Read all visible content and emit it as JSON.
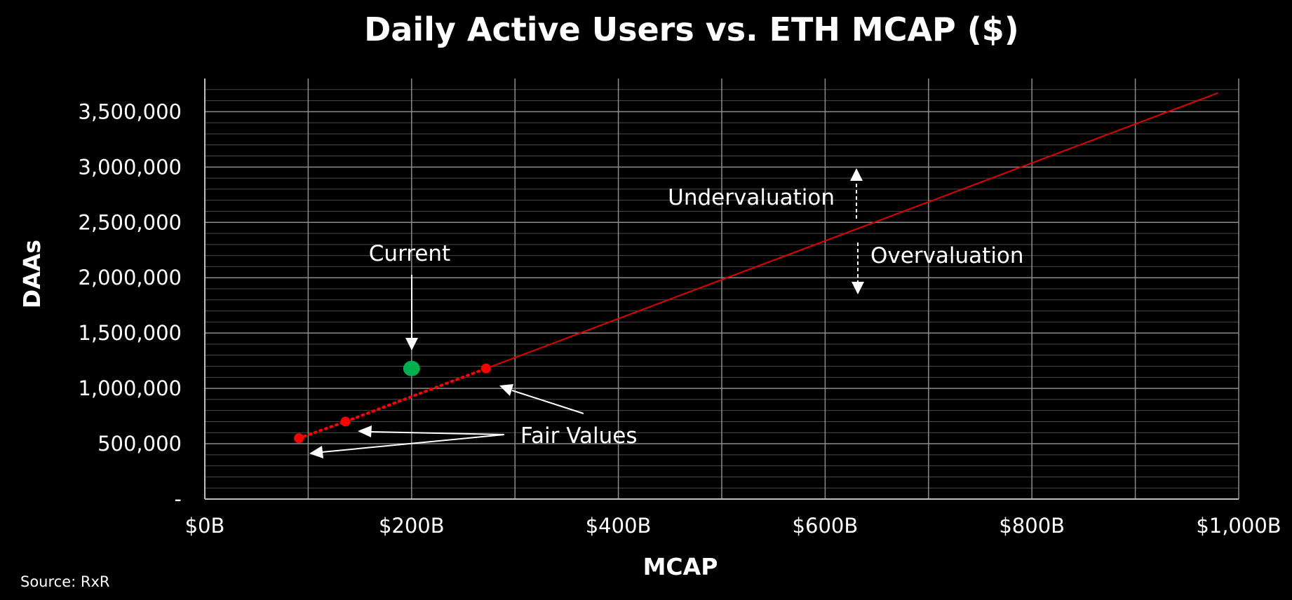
{
  "chart_data": {
    "type": "scatter",
    "title": "Daily Active Users vs. ETH MCAP ($)",
    "xlabel": "MCAP",
    "ylabel": "DAAs",
    "xlim": [
      0,
      1000
    ],
    "ylim": [
      0,
      3800000
    ],
    "x_ticks": [
      {
        "value": 0,
        "label": "$0B"
      },
      {
        "value": 200,
        "label": "$200B"
      },
      {
        "value": 400,
        "label": "$400B"
      },
      {
        "value": 600,
        "label": "$600B"
      },
      {
        "value": 800,
        "label": "$800B"
      },
      {
        "value": 1000,
        "label": "$1,000B"
      }
    ],
    "y_ticks": [
      {
        "value": 0,
        "label": "-"
      },
      {
        "value": 500000,
        "label": "500,000"
      },
      {
        "value": 1000000,
        "label": "1,000,000"
      },
      {
        "value": 1500000,
        "label": "1,500,000"
      },
      {
        "value": 2000000,
        "label": "2,000,000"
      },
      {
        "value": 2500000,
        "label": "2,500,000"
      },
      {
        "value": 3000000,
        "label": "3,000,000"
      },
      {
        "value": 3500000,
        "label": "3,500,000"
      }
    ],
    "grid": true,
    "series": [
      {
        "points": [
          [
            91,
            550000
          ],
          [
            136,
            700000
          ],
          [
            272,
            1180000
          ]
        ],
        "color": "#ff0000",
        "style": "dotted-markers"
      },
      {
        "points": [
          [
            200,
            1180000
          ]
        ],
        "color": "#00b050",
        "style": "marker"
      },
      {
        "points": [
          [
            272,
            1180000
          ],
          [
            980,
            3670000
          ]
        ],
        "color": "#e00000",
        "style": "solid-line"
      }
    ],
    "annotations": {
      "current": "Current",
      "fair_values": "Fair Values",
      "undervaluation": "Undervaluation",
      "overvaluation": "Overvaluation"
    },
    "source": "Source: RxR"
  },
  "colors": {
    "background": "#000000",
    "grid_major": "#8c8c8c",
    "grid_minor": "#4a4a4a",
    "fair_value": "#ff0000",
    "current": "#00b050",
    "trend": "#e00000"
  }
}
